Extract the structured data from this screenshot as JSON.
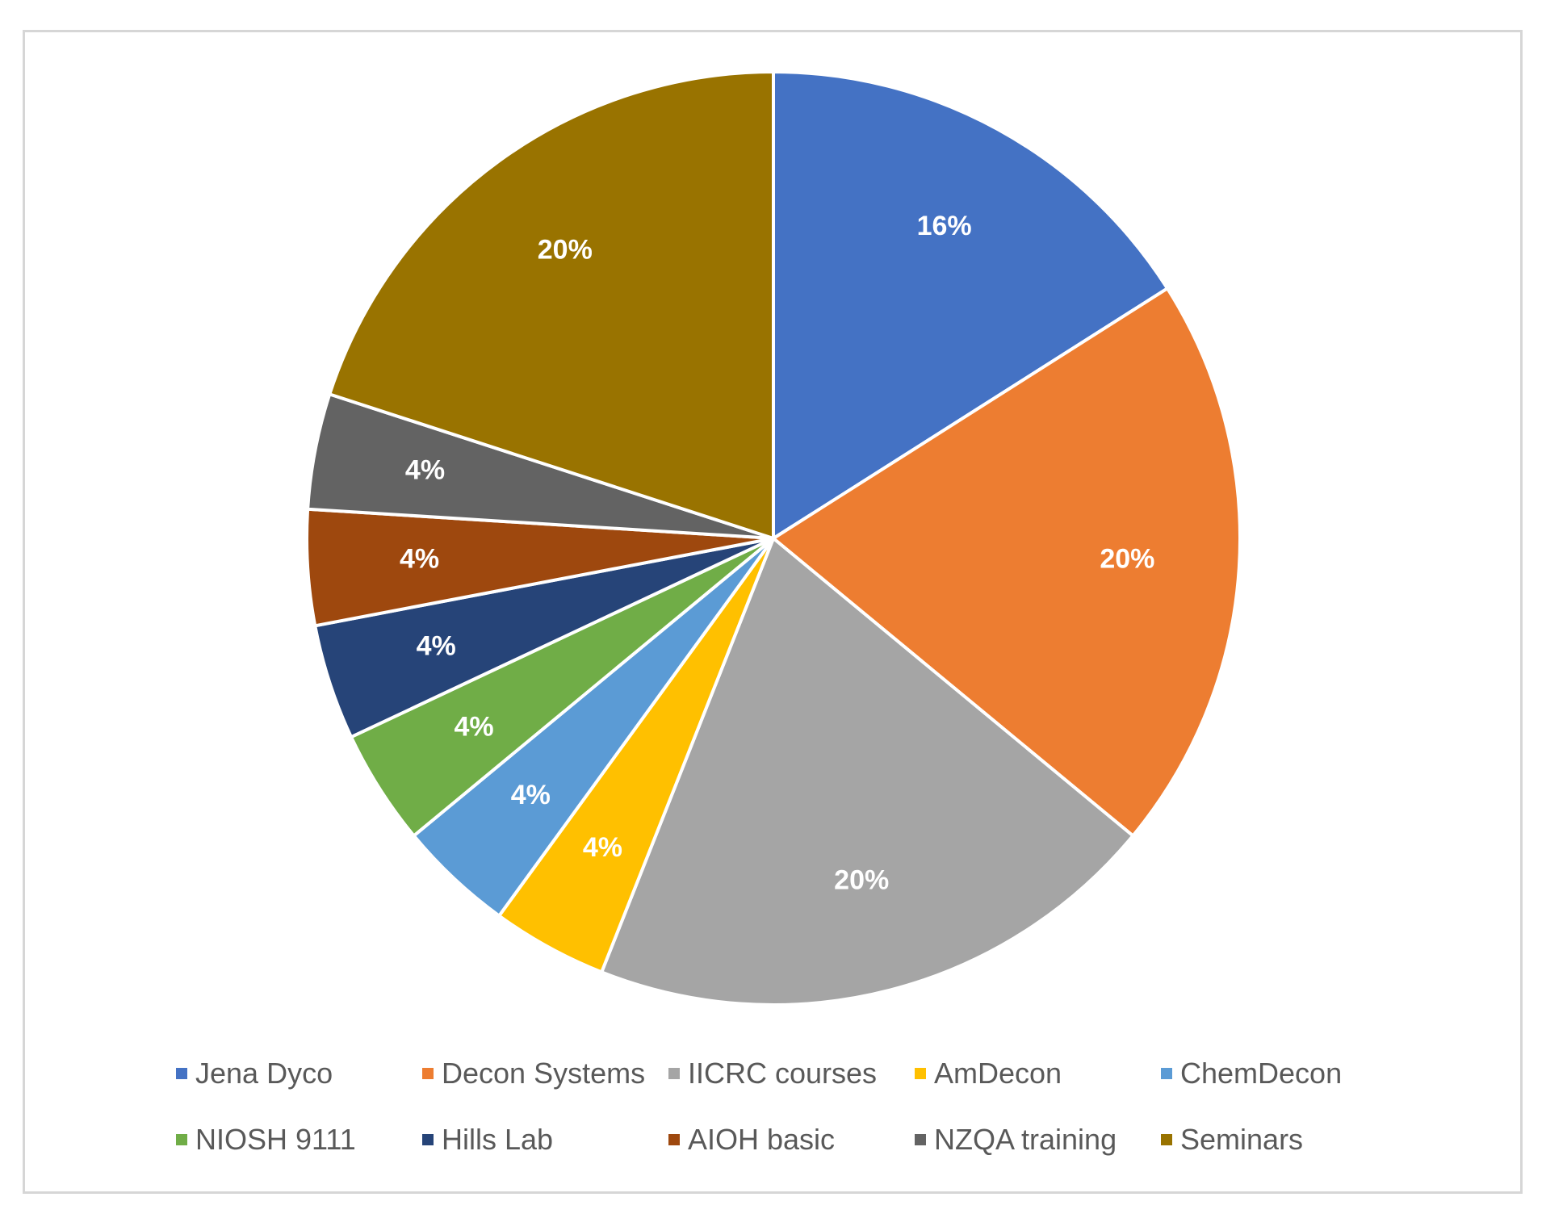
{
  "chart_data": {
    "type": "pie",
    "title": "",
    "categories": [
      "Jena Dyco",
      "Decon Systems",
      "IICRC courses",
      "AmDecon",
      "ChemDecon",
      "NIOSH 9111",
      "Hills Lab",
      "AIOH basic",
      "NZQA training",
      "Seminars"
    ],
    "values": [
      16,
      20,
      20,
      4,
      4,
      4,
      4,
      4,
      4,
      20
    ],
    "data_labels": [
      "16%",
      "20%",
      "20%",
      "4%",
      "4%",
      "4%",
      "4%",
      "4%",
      "4%",
      "20%"
    ],
    "colors": [
      "#4472C4",
      "#ED7D31",
      "#A5A5A5",
      "#FFC000",
      "#5B9BD5",
      "#70AD47",
      "#264478",
      "#9E480E",
      "#636363",
      "#997300"
    ],
    "legend_position": "bottom",
    "start_angle": "top",
    "direction": "clockwise"
  }
}
